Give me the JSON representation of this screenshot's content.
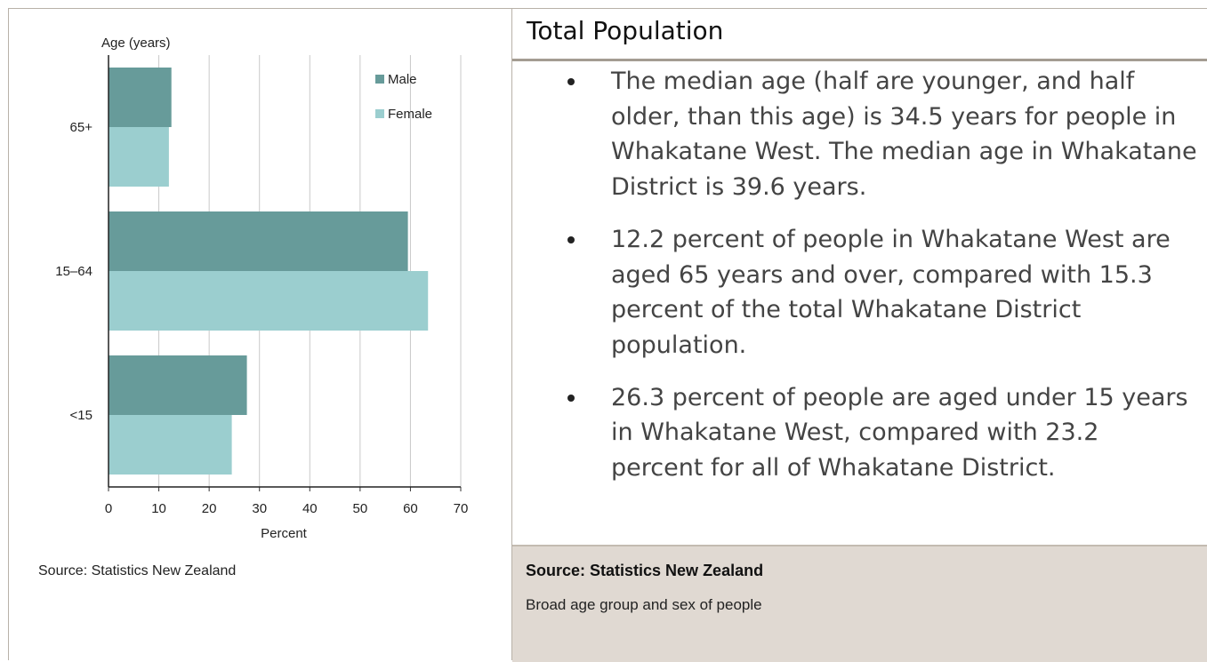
{
  "chart_data": {
    "type": "bar",
    "orientation": "horizontal",
    "categories": [
      "65+",
      "15–64",
      "<15"
    ],
    "series": [
      {
        "name": "Male",
        "values": [
          12.5,
          59.5,
          27.5
        ],
        "color": "#679b9a"
      },
      {
        "name": "Female",
        "values": [
          12,
          63.5,
          24.5
        ],
        "color": "#9bcecf"
      }
    ],
    "xlabel": "Percent",
    "ylabel": "Age (years)",
    "xlim": [
      0,
      70
    ],
    "xticks": [
      0,
      10,
      20,
      30,
      40,
      50,
      60,
      70
    ],
    "grid": true,
    "legend_position": "top-right"
  },
  "chart_source": "Source: Statistics New Zealand",
  "panel": {
    "title": "Total Population",
    "bullets": [
      "The median age (half are younger, and half older, than this age) is 34.5 years for people in Whakatane West. The median age in Whakatane District is 39.6 years.",
      "12.2 percent of people in Whakatane West are aged 65 years and over, compared with 15.3 percent of the total Whakatane District population.",
      "26.3 percent of people are aged under 15 years in Whakatane West, compared with 23.2 percent for all of Whakatane District."
    ],
    "footer_source": "Source: Statistics New Zealand",
    "footer_description": "Broad age group and sex of people"
  }
}
